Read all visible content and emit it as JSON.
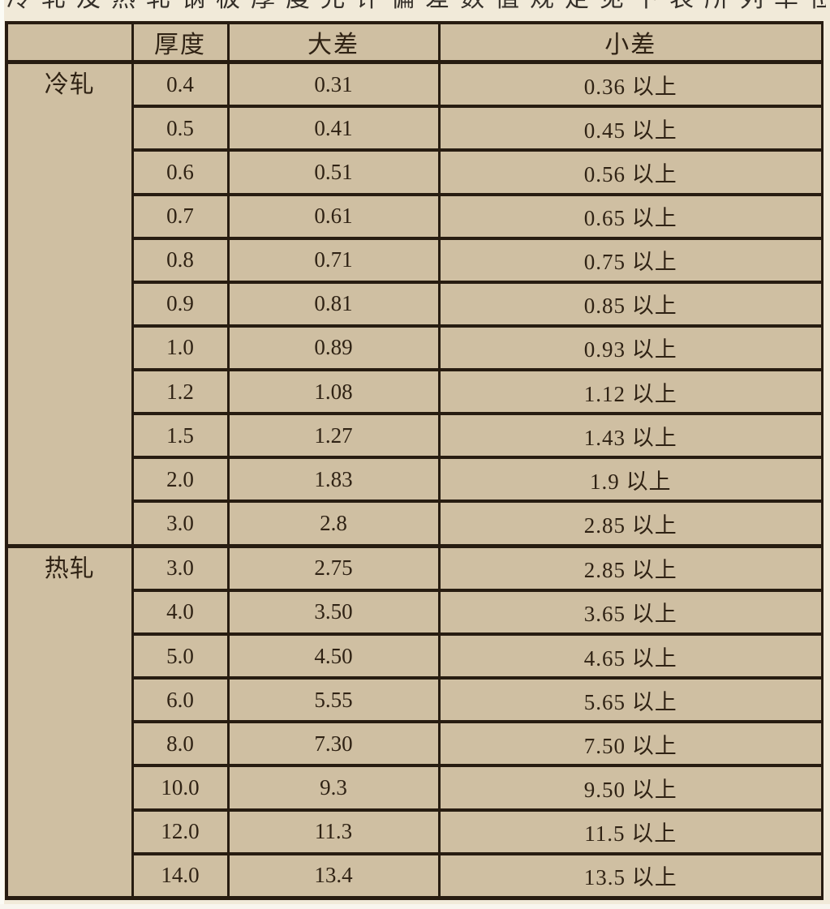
{
  "top_clipped_text_fragment": "冷轧及热轧钢板厚度允许偏差数值规定见下表所列单位为毫米",
  "table": {
    "columns": [
      "",
      "厚度",
      "大差",
      "小差"
    ],
    "groups": [
      {
        "label": "冷轧",
        "rows": [
          [
            "0.4",
            "0.31",
            "0.36 以上"
          ],
          [
            "0.5",
            "0.41",
            "0.45 以上"
          ],
          [
            "0.6",
            "0.51",
            "0.56 以上"
          ],
          [
            "0.7",
            "0.61",
            "0.65 以上"
          ],
          [
            "0.8",
            "0.71",
            "0.75 以上"
          ],
          [
            "0.9",
            "0.81",
            "0.85 以上"
          ],
          [
            "1.0",
            "0.89",
            "0.93 以上"
          ],
          [
            "1.2",
            "1.08",
            "1.12 以上"
          ],
          [
            "1.5",
            "1.27",
            "1.43 以上"
          ],
          [
            "2.0",
            "1.83",
            "1.9 以上"
          ],
          [
            "3.0",
            "2.8",
            "2.85 以上"
          ]
        ]
      },
      {
        "label": "热轧",
        "rows": [
          [
            "3.0",
            "2.75",
            "2.85 以上"
          ],
          [
            "4.0",
            "3.50",
            "3.65 以上"
          ],
          [
            "5.0",
            "4.50",
            "4.65 以上"
          ],
          [
            "6.0",
            "5.55",
            "5.65 以上"
          ],
          [
            "8.0",
            "7.30",
            "7.50 以上"
          ],
          [
            "10.0",
            "9.3",
            "9.50 以上"
          ],
          [
            "12.0",
            "11.3",
            "11.5 以上"
          ],
          [
            "14.0",
            "13.4",
            "13.5 以上"
          ]
        ]
      }
    ]
  },
  "colors": {
    "table_background": "#cfbfa2",
    "border": "#271c11",
    "text": "#2f2214",
    "page_background": "#f1ead9"
  }
}
